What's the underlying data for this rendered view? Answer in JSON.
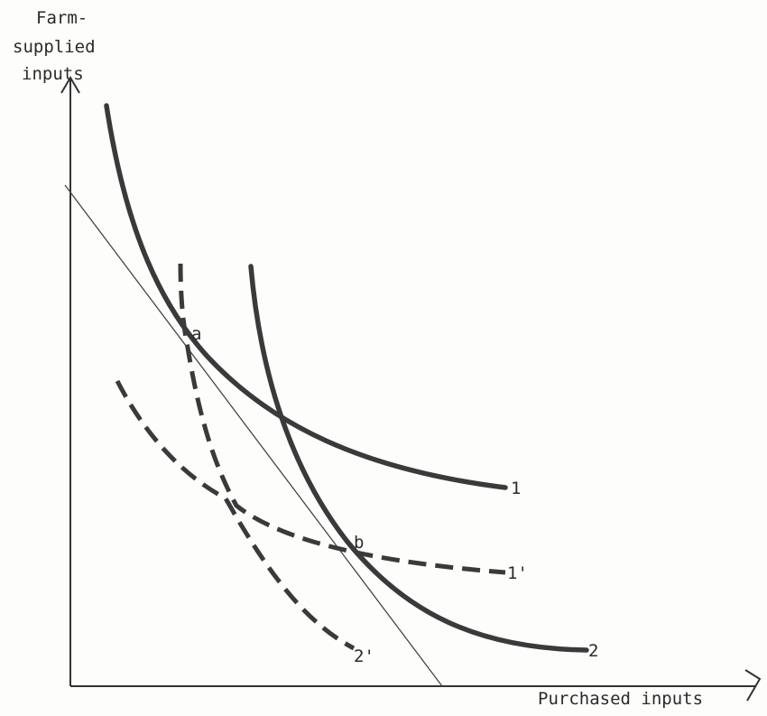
{
  "axes": {
    "y_label_lines": [
      "Farm-",
      "supplied",
      "inputs"
    ],
    "x_label": "Purchased inputs"
  },
  "curves": {
    "curve_1": "1",
    "curve_2": "2",
    "curve_1_prime": "1'",
    "curve_2_prime": "2'"
  },
  "points": {
    "a": "a",
    "b": "b"
  },
  "colors": {
    "ink": "#3a3a3a",
    "background": "#fdfdfc"
  }
}
